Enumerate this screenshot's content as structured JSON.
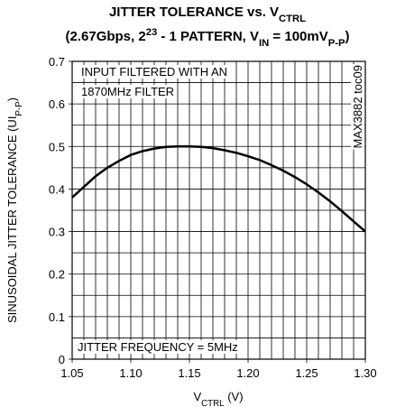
{
  "chart_data": {
    "type": "line",
    "title": [
      {
        "text": "JITTER TOLERANCE vs. V"
      },
      {
        "text": "CTRL",
        "shift": "sub"
      }
    ],
    "subtitle": [
      {
        "text": "(2.67Gbps, 2"
      },
      {
        "text": "23",
        "shift": "super"
      },
      {
        "text": " - 1 PATTERN, V"
      },
      {
        "text": "IN",
        "shift": "sub"
      },
      {
        "text": " = 100mV"
      },
      {
        "text": "P-P",
        "shift": "sub"
      },
      {
        "text": ")"
      }
    ],
    "xlabel": [
      {
        "text": "V"
      },
      {
        "text": "CTRL",
        "shift": "sub"
      },
      {
        "text": " (V)"
      }
    ],
    "ylabel": [
      {
        "text": "SINUSOIDAL JITTER TOLERANCE (UI"
      },
      {
        "text": "P-P",
        "shift": "sub"
      },
      {
        "text": ")"
      }
    ],
    "annotations": [
      "INPUT FILTERED WITH AN",
      "1870MHz FILTER",
      "JITTER FREQUENCY = 5MHz"
    ],
    "figure_id": "MAX3882 toc09",
    "x": [
      1.05,
      1.06,
      1.07,
      1.08,
      1.09,
      1.1,
      1.11,
      1.12,
      1.13,
      1.14,
      1.15,
      1.16,
      1.17,
      1.18,
      1.19,
      1.2,
      1.21,
      1.22,
      1.23,
      1.24,
      1.25,
      1.26,
      1.27,
      1.28,
      1.29,
      1.3
    ],
    "values": [
      0.38,
      0.405,
      0.43,
      0.45,
      0.466,
      0.48,
      0.489,
      0.495,
      0.499,
      0.5,
      0.5,
      0.499,
      0.496,
      0.491,
      0.485,
      0.477,
      0.468,
      0.456,
      0.443,
      0.428,
      0.411,
      0.392,
      0.371,
      0.348,
      0.324,
      0.3
    ],
    "color": "#000000",
    "xlim": [
      1.05,
      1.3
    ],
    "ylim": [
      0,
      0.7
    ],
    "xticks": [
      1.05,
      {
        "value": 1.1,
        "label": "1.10"
      },
      1.15,
      {
        "value": 1.2,
        "label": "1.20"
      },
      1.25,
      {
        "value": 1.3,
        "label": "1.30"
      }
    ],
    "yticks": [
      0,
      0.1,
      0.2,
      0.3,
      0.4,
      0.5,
      0.6,
      0.7
    ],
    "grid": true,
    "xminor_step": 0.01,
    "yminor_step": 0.05
  }
}
